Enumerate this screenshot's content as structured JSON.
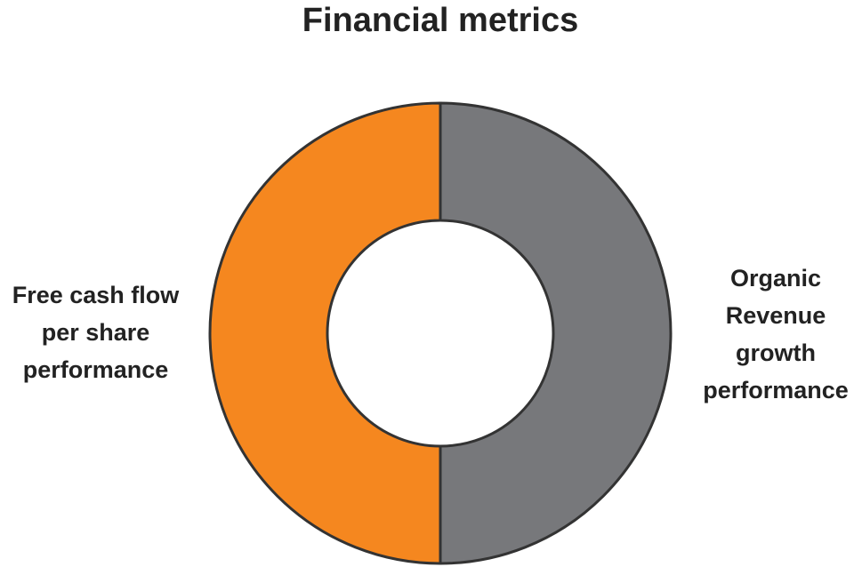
{
  "chart_data": {
    "type": "pie",
    "subtype": "donut",
    "title": "Financial metrics",
    "slices": [
      {
        "label": "Organic Revenue growth performance",
        "label_lines": [
          "Organic",
          "Revenue",
          "growth",
          "performance"
        ],
        "value": 50,
        "color": "#77787B"
      },
      {
        "label": "Free cash flow per share performance",
        "label_lines": [
          "Free cash flow",
          "per share",
          "performance"
        ],
        "value": 50,
        "color": "#F5871F"
      }
    ],
    "stroke_color": "#333333",
    "legend": "none"
  }
}
